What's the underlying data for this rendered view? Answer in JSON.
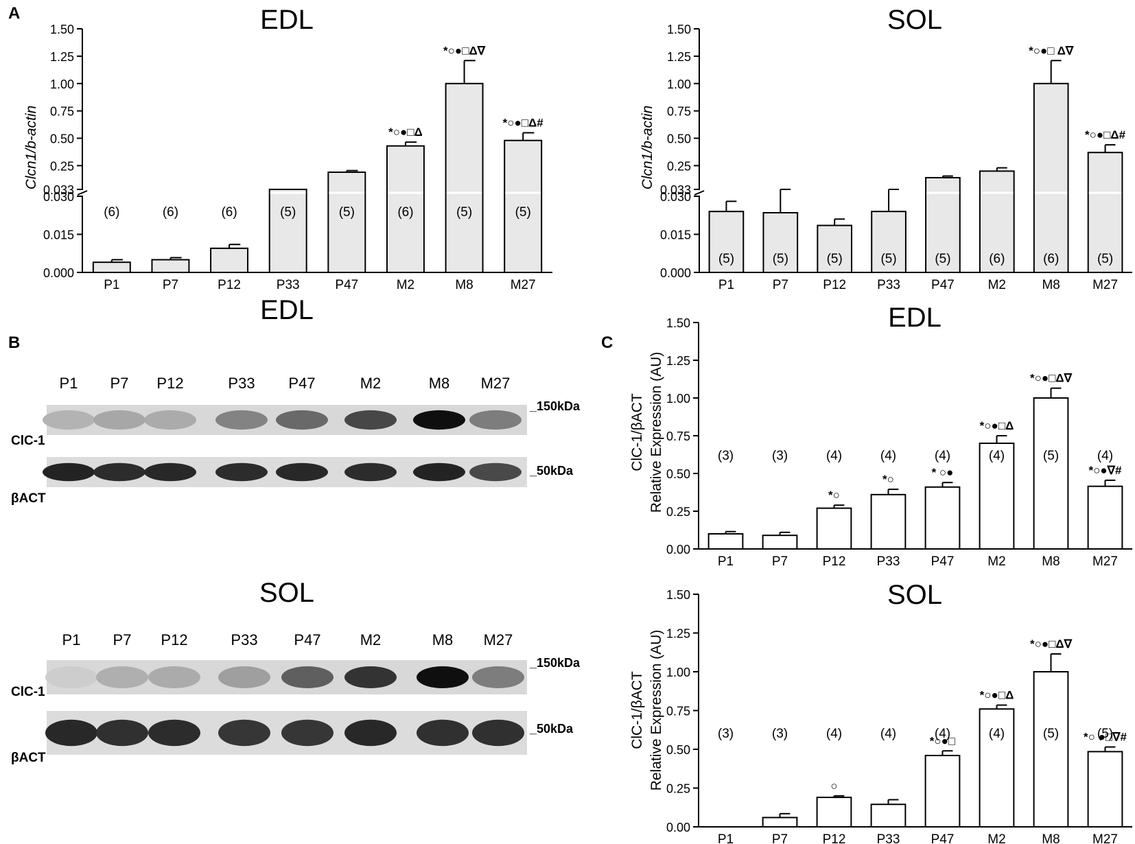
{
  "panel_letters": {
    "a": "A",
    "b": "B",
    "c": "C"
  },
  "blots": [
    {
      "title": "EDL",
      "lanes": [
        "P1",
        "P7",
        "P12",
        "P33",
        "P47",
        "M2",
        "M8",
        "M27"
      ],
      "markers": {
        "upper": "_150kDa",
        "lower": "_50kDa"
      },
      "rows": {
        "clc": "ClC-1",
        "act": "βACT"
      },
      "clc_intensity": [
        0.18,
        0.24,
        0.22,
        0.42,
        0.55,
        0.72,
        1.0,
        0.45
      ],
      "act_intensity": [
        0.95,
        0.9,
        0.92,
        0.9,
        0.92,
        0.9,
        0.95,
        0.75
      ]
    },
    {
      "title": "SOL",
      "lanes": [
        "P1",
        "P7",
        "P12",
        "P33",
        "P47",
        "M2",
        "M8",
        "M27"
      ],
      "markers": {
        "upper": "_150kDa",
        "lower": "_50kDa"
      },
      "rows": {
        "clc": "ClC-1",
        "act": "βACT"
      },
      "clc_intensity": [
        0.05,
        0.2,
        0.22,
        0.28,
        0.6,
        0.82,
        1.0,
        0.45
      ],
      "act_intensity": [
        0.92,
        0.88,
        0.9,
        0.85,
        0.85,
        0.92,
        0.88,
        0.88
      ]
    }
  ],
  "chart_data": [
    {
      "type": "bar",
      "panel": "A",
      "title": "EDL",
      "ylabel": "Clcn1/b-actin",
      "categories": [
        "P1",
        "P7",
        "P12",
        "P33",
        "P47",
        "M2",
        "M8",
        "M27"
      ],
      "values": [
        0.004,
        0.005,
        0.0095,
        0.031,
        0.19,
        0.43,
        1.0,
        0.48
      ],
      "errors": [
        0.001,
        0.0008,
        0.0015,
        0.0004,
        0.015,
        0.035,
        0.21,
        0.07
      ],
      "n_labels": [
        "(6)",
        "(6)",
        "(6)",
        "(5)",
        "(5)",
        "(6)",
        "(5)",
        "(5)"
      ],
      "annotations": [
        "",
        "",
        "",
        "",
        "",
        "*○●□Δ",
        "*○●□Δ∇",
        "*○●□Δ#"
      ],
      "y_axis_break": {
        "lower_ticks": [
          "0.000",
          "0.015",
          "0.030"
        ],
        "upper_ticks": [
          "0.033",
          "0.25",
          "0.50",
          "0.75",
          "1.00",
          "1.25",
          "1.50"
        ],
        "lower_range": [
          0,
          0.03
        ],
        "upper_range": [
          0.033,
          1.5
        ]
      }
    },
    {
      "type": "bar",
      "panel": "A",
      "title": "SOL",
      "ylabel": "Clcn1/b-actin",
      "categories": [
        "P1",
        "P7",
        "P12",
        "P33",
        "P47",
        "M2",
        "M8",
        "M27"
      ],
      "values": [
        0.024,
        0.0235,
        0.0185,
        0.024,
        0.14,
        0.2,
        1.0,
        0.37
      ],
      "errors": [
        0.004,
        0.007,
        0.0025,
        0.0075,
        0.015,
        0.03,
        0.21,
        0.07
      ],
      "n_labels": [
        "(5)",
        "(5)",
        "(5)",
        "(5)",
        "(5)",
        "(6)",
        "(6)",
        "(5)"
      ],
      "annotations": [
        "",
        "",
        "",
        "",
        "",
        "",
        "*○●□ Δ∇",
        "*○●□Δ#"
      ],
      "y_axis_break": {
        "lower_ticks": [
          "0.000",
          "0.015",
          "0.030"
        ],
        "upper_ticks": [
          "0.033",
          "0.25",
          "0.50",
          "0.75",
          "1.00",
          "1.25",
          "1.50"
        ],
        "lower_range": [
          0,
          0.03
        ],
        "upper_range": [
          0.033,
          1.5
        ]
      }
    },
    {
      "type": "bar",
      "panel": "C",
      "title": "EDL",
      "ylabel": [
        "ClC-1/βACT",
        "Relative Expression (AU)"
      ],
      "categories": [
        "P1",
        "P7",
        "P12",
        "P33",
        "P47",
        "M2",
        "M8",
        "M27"
      ],
      "values": [
        0.1,
        0.09,
        0.27,
        0.36,
        0.41,
        0.7,
        1.0,
        0.415
      ],
      "errors": [
        0.015,
        0.02,
        0.02,
        0.035,
        0.03,
        0.05,
        0.065,
        0.04
      ],
      "n_labels": [
        "(3)",
        "(3)",
        "(4)",
        "(4)",
        "(4)",
        "(4)",
        "(5)",
        "(4)"
      ],
      "annotations": [
        "",
        "",
        "*○",
        "*○",
        "* ○●",
        "*○●□Δ",
        "*○●□Δ∇",
        "*○●∇#"
      ],
      "yticks": [
        "0.00",
        "0.25",
        "0.50",
        "0.75",
        "1.00",
        "1.25",
        "1.50"
      ],
      "ylim": [
        0,
        1.5
      ]
    },
    {
      "type": "bar",
      "panel": "C",
      "title": "SOL",
      "ylabel": [
        "ClC-1/βACT",
        "Relative Expression (AU)"
      ],
      "categories": [
        "P1",
        "P7",
        "P12",
        "P33",
        "P47",
        "M2",
        "M8",
        "M27"
      ],
      "values": [
        0.0,
        0.06,
        0.19,
        0.145,
        0.46,
        0.76,
        1.0,
        0.485
      ],
      "errors": [
        0.0,
        0.025,
        0.01,
        0.03,
        0.03,
        0.025,
        0.115,
        0.03
      ],
      "n_labels": [
        "(3)",
        "(3)",
        "(4)",
        "(4)",
        "(4)",
        "(4)",
        "(5)",
        "(5)"
      ],
      "annotations": [
        "",
        "",
        "○",
        "",
        "*○●□",
        "*○●□Δ",
        "*○●□Δ∇",
        "*○ ●□∇#"
      ],
      "yticks": [
        "0.00",
        "0.25",
        "0.50",
        "0.75",
        "1.00",
        "1.25",
        "1.50"
      ],
      "ylim": [
        0,
        1.5
      ]
    }
  ]
}
